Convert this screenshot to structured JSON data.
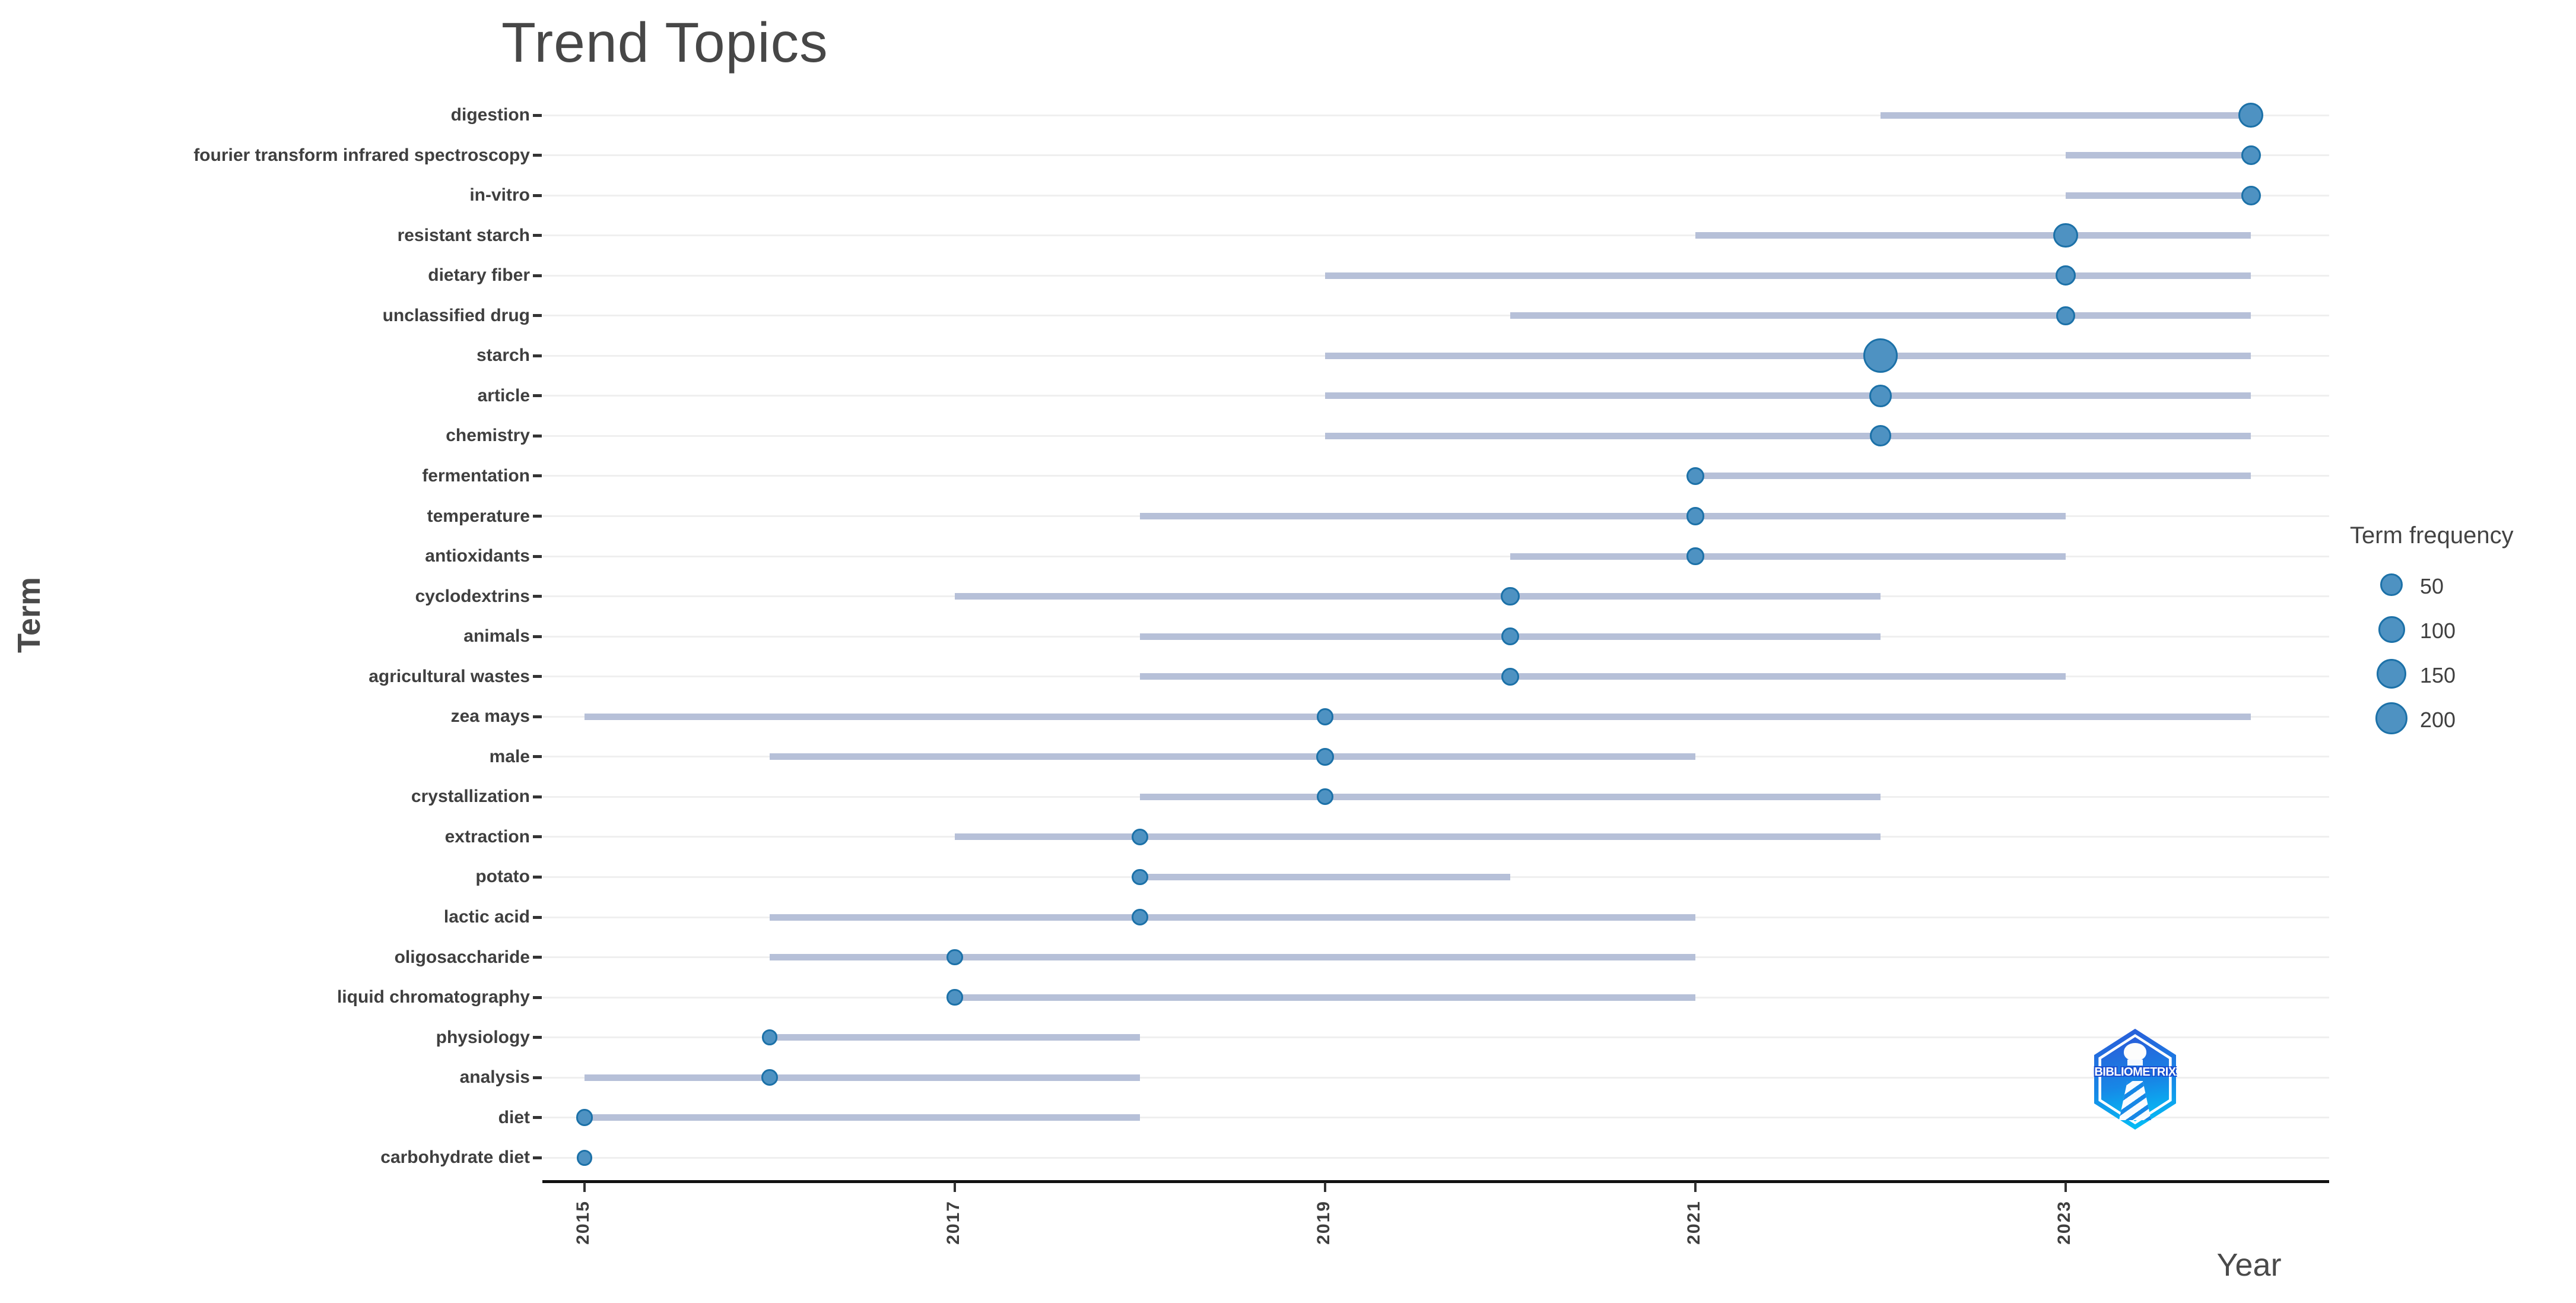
{
  "title": "Trend Topics",
  "axes": {
    "x": {
      "label": "Year",
      "ticks": [
        "2015",
        "2017",
        "2019",
        "2021",
        "2023"
      ]
    },
    "y": {
      "label": "Term"
    }
  },
  "legend": {
    "title": "Term frequency",
    "entries": [
      {
        "size": 50,
        "label": "50"
      },
      {
        "size": 100,
        "label": "100"
      },
      {
        "size": 150,
        "label": "150"
      },
      {
        "size": 200,
        "label": "200"
      }
    ]
  },
  "logo": {
    "text": "BIBLIOMETRIX"
  },
  "colors": {
    "dot_fill": "#4e92c2",
    "dot_stroke": "#1c71a8",
    "range_line": "#b6c0d8",
    "grid_line": "#efefef",
    "axis_line": "#121212",
    "text_dark": "#3f3f3f",
    "logo_blue_top": "#2b59d8",
    "logo_blue_bottom": "#00c8f8"
  },
  "chart_data": {
    "type": "scatter",
    "subtype": "trend-topics-timeline",
    "title": "Trend Topics",
    "xlabel": "Year",
    "ylabel": "Term",
    "x_ticks": [
      2015,
      2017,
      2019,
      2021,
      2023
    ],
    "x_range": [
      2014.8,
      2024.4
    ],
    "grid": "horizontal-only",
    "legend_title": "Term frequency",
    "legend_sizes": [
      50,
      100,
      150,
      200
    ],
    "size_encoding": "dot area ~ term frequency",
    "terms": [
      {
        "label": "digestion",
        "year_start": 2022,
        "year_peak": 2024,
        "year_end": 2024,
        "frequency": 80
      },
      {
        "label": "fourier transform infrared spectroscopy",
        "year_start": 2023,
        "year_peak": 2024,
        "year_end": 2024,
        "frequency": 25
      },
      {
        "label": "in-vitro",
        "year_start": 2023,
        "year_peak": 2024,
        "year_end": 2024,
        "frequency": 25
      },
      {
        "label": "resistant starch",
        "year_start": 2021,
        "year_peak": 2023,
        "year_end": 2024,
        "frequency": 70
      },
      {
        "label": "dietary fiber",
        "year_start": 2019,
        "year_peak": 2023,
        "year_end": 2024,
        "frequency": 30
      },
      {
        "label": "unclassified drug",
        "year_start": 2020,
        "year_peak": 2023,
        "year_end": 2024,
        "frequency": 20
      },
      {
        "label": "starch",
        "year_start": 2019,
        "year_peak": 2022,
        "year_end": 2024,
        "frequency": 240
      },
      {
        "label": "article",
        "year_start": 2019,
        "year_peak": 2022,
        "year_end": 2024,
        "frequency": 50
      },
      {
        "label": "chemistry",
        "year_start": 2019,
        "year_peak": 2022,
        "year_end": 2024,
        "frequency": 40
      },
      {
        "label": "fermentation",
        "year_start": 2021,
        "year_peak": 2021,
        "year_end": 2024,
        "frequency": 15
      },
      {
        "label": "temperature",
        "year_start": 2018,
        "year_peak": 2021,
        "year_end": 2023,
        "frequency": 15
      },
      {
        "label": "antioxidants",
        "year_start": 2020,
        "year_peak": 2021,
        "year_end": 2023,
        "frequency": 12
      },
      {
        "label": "cyclodextrins",
        "year_start": 2017,
        "year_peak": 2020,
        "year_end": 2022,
        "frequency": 20
      },
      {
        "label": "animals",
        "year_start": 2018,
        "year_peak": 2020,
        "year_end": 2022,
        "frequency": 15
      },
      {
        "label": "agricultural wastes",
        "year_start": 2018,
        "year_peak": 2020,
        "year_end": 2023,
        "frequency": 15
      },
      {
        "label": "zea mays",
        "year_start": 2015,
        "year_peak": 2019,
        "year_end": 2024,
        "frequency": 10
      },
      {
        "label": "male",
        "year_start": 2016,
        "year_peak": 2019,
        "year_end": 2021,
        "frequency": 15
      },
      {
        "label": "crystallization",
        "year_start": 2018,
        "year_peak": 2019,
        "year_end": 2022,
        "frequency": 8
      },
      {
        "label": "extraction",
        "year_start": 2017,
        "year_peak": 2018,
        "year_end": 2022,
        "frequency": 10
      },
      {
        "label": "potato",
        "year_start": 2018,
        "year_peak": 2018,
        "year_end": 2020,
        "frequency": 8
      },
      {
        "label": "lactic acid",
        "year_start": 2016,
        "year_peak": 2018,
        "year_end": 2021,
        "frequency": 8
      },
      {
        "label": "oligosaccharide",
        "year_start": 2016,
        "year_peak": 2017,
        "year_end": 2021,
        "frequency": 8
      },
      {
        "label": "liquid chromatography",
        "year_start": 2017,
        "year_peak": 2017,
        "year_end": 2021,
        "frequency": 7
      },
      {
        "label": "physiology",
        "year_start": 2016,
        "year_peak": 2016,
        "year_end": 2018,
        "frequency": 5
      },
      {
        "label": "analysis",
        "year_start": 2015,
        "year_peak": 2016,
        "year_end": 2018,
        "frequency": 8
      },
      {
        "label": "diet",
        "year_start": 2015,
        "year_peak": 2015,
        "year_end": 2018,
        "frequency": 10
      },
      {
        "label": "carbohydrate diet",
        "year_start": 2015,
        "year_peak": 2015,
        "year_end": 2015,
        "frequency": 6
      }
    ]
  }
}
